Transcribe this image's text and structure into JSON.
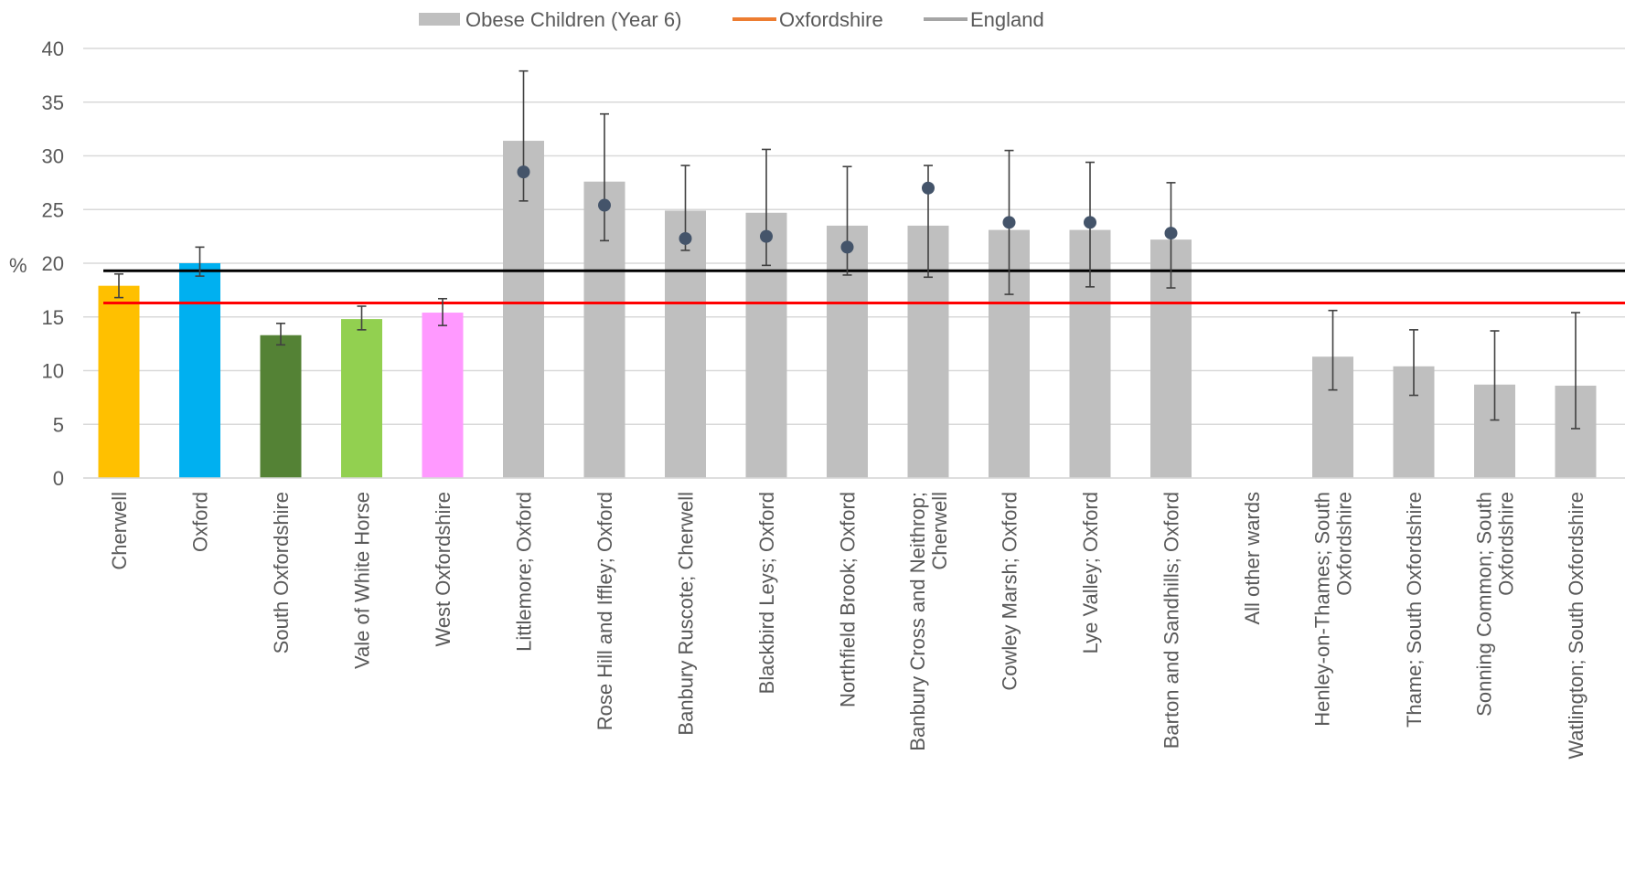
{
  "chart_data": {
    "type": "bar",
    "ylabel": "%",
    "ylim": [
      0,
      40
    ],
    "y_ticks": [
      0,
      5,
      10,
      15,
      20,
      25,
      30,
      35,
      40
    ],
    "grid": true,
    "legend": {
      "position": "top",
      "entries": [
        {
          "label": "Obese Children (Year 6)",
          "color": "#bfbfbf",
          "kind": "bar"
        },
        {
          "label": "Oxfordshire",
          "color": "#ed7d31",
          "kind": "line"
        },
        {
          "label": "England",
          "color": "#a5a5a5",
          "kind": "line"
        }
      ]
    },
    "categories": [
      "Cherwell",
      "Oxford",
      "South Oxfordshire",
      "Vale of White Horse",
      "West Oxfordshire",
      "Littlemore; Oxford",
      "Rose Hill and Iffley; Oxford",
      "Banbury Ruscote; Cherwell",
      "Blackbird Leys; Oxford",
      "Northfield Brook; Oxford",
      "Banbury Cross and Neithrop; Cherwell",
      "Cowley Marsh; Oxford",
      "Lye Valley; Oxford",
      "Barton and Sandhills; Oxford",
      "All other wards",
      "Henley-on-Thames; South Oxfordshire",
      "Thame; South Oxfordshire",
      "Sonning Common; South Oxfordshire",
      "Watlington; South Oxfordshire"
    ],
    "category_label_lines": [
      [
        "Cherwell"
      ],
      [
        "Oxford"
      ],
      [
        "South Oxfordshire"
      ],
      [
        "Vale of White Horse"
      ],
      [
        "West Oxfordshire"
      ],
      [
        "Littlemore; Oxford"
      ],
      [
        "Rose Hill and Iffley; Oxford"
      ],
      [
        "Banbury Ruscote; Cherwell"
      ],
      [
        "Blackbird Leys; Oxford"
      ],
      [
        "Northfield Brook; Oxford"
      ],
      [
        "Banbury Cross and Neithrop;",
        "Cherwell"
      ],
      [
        "Cowley Marsh; Oxford"
      ],
      [
        "Lye Valley; Oxford"
      ],
      [
        "Barton and Sandhills; Oxford"
      ],
      [
        "All other wards"
      ],
      [
        "Henley-on-Thames; South",
        "Oxfordshire"
      ],
      [
        "Thame; South Oxfordshire"
      ],
      [
        "Sonning Common; South",
        "Oxfordshire"
      ],
      [
        "Watlington; South Oxfordshire"
      ]
    ],
    "values": [
      17.9,
      20.0,
      13.3,
      14.8,
      15.4,
      31.4,
      27.6,
      24.9,
      24.7,
      23.5,
      23.5,
      23.1,
      23.1,
      22.2,
      null,
      11.3,
      10.4,
      8.7,
      8.6
    ],
    "bar_colors": [
      "#ffc000",
      "#00b0f0",
      "#548235",
      "#92d050",
      "#ff99ff",
      "#bfbfbf",
      "#bfbfbf",
      "#bfbfbf",
      "#bfbfbf",
      "#bfbfbf",
      "#bfbfbf",
      "#bfbfbf",
      "#bfbfbf",
      "#bfbfbf",
      "#bfbfbf",
      "#bfbfbf",
      "#bfbfbf",
      "#bfbfbf",
      "#bfbfbf"
    ],
    "error_bars": [
      [
        16.8,
        19.0
      ],
      [
        18.8,
        21.5
      ],
      [
        12.4,
        14.4
      ],
      [
        13.8,
        16.0
      ],
      [
        14.2,
        16.7
      ],
      [
        25.8,
        37.9
      ],
      [
        22.1,
        33.9
      ],
      [
        21.2,
        29.1
      ],
      [
        19.8,
        30.6
      ],
      [
        18.9,
        29.0
      ],
      [
        18.7,
        29.1
      ],
      [
        17.1,
        30.5
      ],
      [
        17.8,
        29.4
      ],
      [
        17.7,
        27.5
      ],
      null,
      [
        8.2,
        15.6
      ],
      [
        7.7,
        13.8
      ],
      [
        5.4,
        13.7
      ],
      [
        4.6,
        15.4
      ]
    ],
    "markers": [
      null,
      null,
      null,
      null,
      null,
      28.5,
      25.4,
      22.3,
      22.5,
      21.5,
      27.0,
      23.8,
      23.8,
      22.8,
      null,
      null,
      null,
      null,
      null
    ],
    "marker_color": "#44546a",
    "reference_lines": [
      {
        "value": 19.3,
        "color": "#000000"
      },
      {
        "value": 16.3,
        "color": "#ff0000"
      }
    ]
  }
}
